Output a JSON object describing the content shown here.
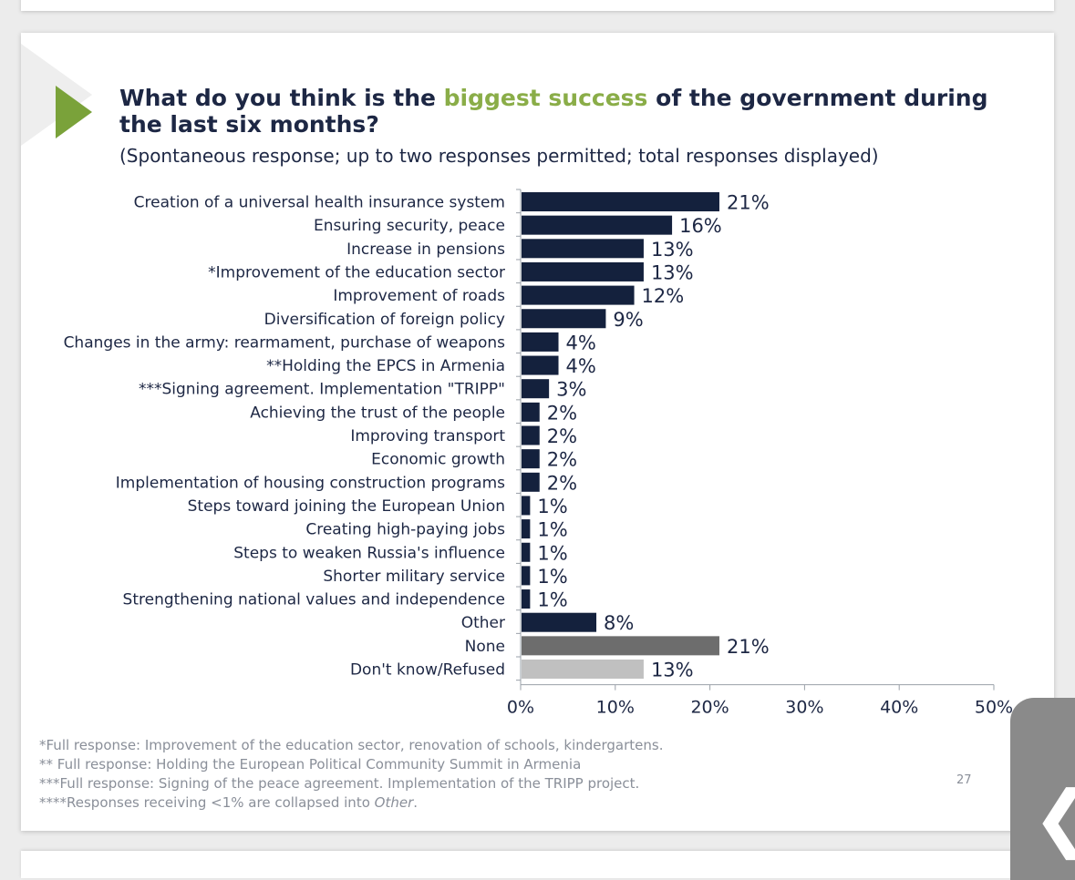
{
  "title": {
    "before": "What do you think is the ",
    "accent": "biggest success",
    "after": " of the government during the last six months?"
  },
  "subtitle": "(Spontaneous response; up to two responses permitted; total responses displayed)",
  "colors": {
    "accent": "#8aad48",
    "bar_main": "#14213d",
    "bar_none": "#6d6d6d",
    "bar_dk": "#c0c0c0"
  },
  "chart_data": {
    "type": "bar",
    "orientation": "horizontal",
    "categories": [
      "Creation of a universal health insurance system",
      "Ensuring security, peace",
      "Increase in pensions",
      "*Improvement of the education sector",
      "Improvement of roads",
      "Diversification of foreign policy",
      "Changes in the army: rearmament, purchase of weapons",
      "**Holding the EPCS in Armenia",
      "***Signing agreement. Implementation \"TRIPP\"",
      "Achieving the trust of the people",
      "Improving transport",
      "Economic growth",
      "Implementation of housing construction programs",
      "Steps toward joining the European Union",
      "Creating high-paying jobs",
      "Steps to weaken Russia's influence",
      "Shorter military service",
      "Strengthening national values and independence",
      "Other",
      "None",
      "Don't know/Refused"
    ],
    "values": [
      21,
      16,
      13,
      13,
      12,
      9,
      4,
      4,
      3,
      2,
      2,
      2,
      2,
      1,
      1,
      1,
      1,
      1,
      8,
      21,
      13
    ],
    "value_labels": [
      "21%",
      "16%",
      "13%",
      "13%",
      "12%",
      "9%",
      "4%",
      "4%",
      "3%",
      "2%",
      "2%",
      "2%",
      "2%",
      "1%",
      "1%",
      "1%",
      "1%",
      "1%",
      "8%",
      "21%",
      "13%"
    ],
    "bar_colors": [
      "#14213d",
      "#14213d",
      "#14213d",
      "#14213d",
      "#14213d",
      "#14213d",
      "#14213d",
      "#14213d",
      "#14213d",
      "#14213d",
      "#14213d",
      "#14213d",
      "#14213d",
      "#14213d",
      "#14213d",
      "#14213d",
      "#14213d",
      "#14213d",
      "#14213d",
      "#6d6d6d",
      "#c0c0c0"
    ],
    "x_ticks": [
      "0%",
      "10%",
      "20%",
      "30%",
      "40%",
      "50%"
    ],
    "xlim": [
      0,
      50
    ],
    "grid": false,
    "legend": "none"
  },
  "footnotes": {
    "note1": "*Full response: Improvement of the education sector, renovation of schools, kindergartens.",
    "note2": "** Full response: Holding the European Political Community Summit in Armenia",
    "note3": "***Full response: Signing of the peace agreement. Implementation of the TRIPP project.",
    "note4_prefix": "****Responses receiving <1% are collapsed into ",
    "note4_italic": "Other",
    "note4_suffix": "."
  },
  "page_number": "27",
  "side_tab_chevron": "❮"
}
